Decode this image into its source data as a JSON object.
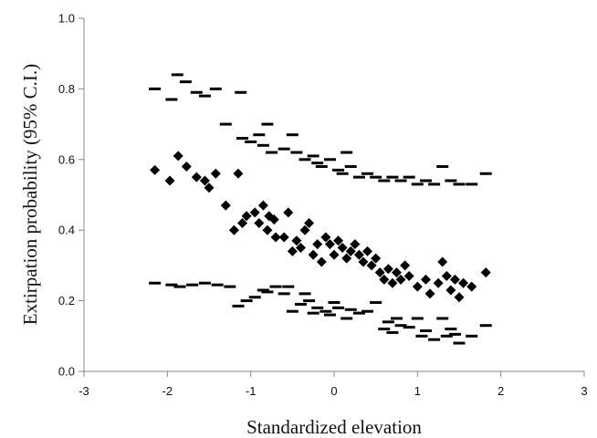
{
  "chart_data": {
    "type": "scatter",
    "title": "",
    "xlabel": "Standardized elevation",
    "ylabel": "Extirpation probability (95% C.I.)",
    "xlim": [
      -3,
      3
    ],
    "ylim": [
      0,
      1.0
    ],
    "xticks": [
      "-3",
      "-2",
      "-1",
      "0",
      "1",
      "2",
      "3"
    ],
    "yticks": [
      "0.0",
      "0.2",
      "0.4",
      "0.6",
      "0.8",
      "1.0"
    ],
    "grid": false,
    "legend": "none",
    "series": [
      {
        "role": "upper 95% C.I.",
        "marker": "dash",
        "color": "#000000",
        "points": [
          [
            -2.15,
            0.8
          ],
          [
            -1.95,
            0.77
          ],
          [
            -1.88,
            0.84
          ],
          [
            -1.78,
            0.82
          ],
          [
            -1.65,
            0.79
          ],
          [
            -1.55,
            0.78
          ],
          [
            -1.42,
            0.8
          ],
          [
            -1.12,
            0.79
          ],
          [
            -1.3,
            0.7
          ],
          [
            -1.1,
            0.66
          ],
          [
            -1.0,
            0.65
          ],
          [
            -0.9,
            0.67
          ],
          [
            -0.8,
            0.7
          ],
          [
            -0.85,
            0.64
          ],
          [
            -0.75,
            0.62
          ],
          [
            -0.6,
            0.63
          ],
          [
            -0.5,
            0.67
          ],
          [
            -0.45,
            0.62
          ],
          [
            -0.35,
            0.6
          ],
          [
            -0.25,
            0.61
          ],
          [
            -0.2,
            0.59
          ],
          [
            -0.15,
            0.58
          ],
          [
            -0.05,
            0.6
          ],
          [
            0.05,
            0.57
          ],
          [
            0.1,
            0.56
          ],
          [
            0.15,
            0.62
          ],
          [
            0.2,
            0.58
          ],
          [
            0.3,
            0.55
          ],
          [
            0.4,
            0.56
          ],
          [
            0.5,
            0.55
          ],
          [
            0.6,
            0.54
          ],
          [
            0.7,
            0.55
          ],
          [
            0.8,
            0.54
          ],
          [
            0.9,
            0.55
          ],
          [
            1.0,
            0.53
          ],
          [
            1.1,
            0.54
          ],
          [
            1.2,
            0.53
          ],
          [
            1.3,
            0.58
          ],
          [
            1.4,
            0.54
          ],
          [
            1.5,
            0.53
          ],
          [
            1.65,
            0.53
          ],
          [
            1.82,
            0.56
          ]
        ]
      },
      {
        "role": "estimate",
        "marker": "diamond",
        "color": "#000000",
        "points": [
          [
            -2.15,
            0.57
          ],
          [
            -1.97,
            0.54
          ],
          [
            -1.87,
            0.61
          ],
          [
            -1.77,
            0.58
          ],
          [
            -1.65,
            0.55
          ],
          [
            -1.55,
            0.54
          ],
          [
            -1.5,
            0.52
          ],
          [
            -1.42,
            0.56
          ],
          [
            -1.3,
            0.47
          ],
          [
            -1.15,
            0.56
          ],
          [
            -1.2,
            0.4
          ],
          [
            -1.1,
            0.42
          ],
          [
            -1.05,
            0.44
          ],
          [
            -0.95,
            0.45
          ],
          [
            -0.9,
            0.42
          ],
          [
            -0.85,
            0.47
          ],
          [
            -0.8,
            0.4
          ],
          [
            -0.78,
            0.44
          ],
          [
            -0.72,
            0.43
          ],
          [
            -0.7,
            0.38
          ],
          [
            -0.6,
            0.38
          ],
          [
            -0.55,
            0.45
          ],
          [
            -0.5,
            0.34
          ],
          [
            -0.45,
            0.37
          ],
          [
            -0.4,
            0.35
          ],
          [
            -0.35,
            0.4
          ],
          [
            -0.3,
            0.42
          ],
          [
            -0.25,
            0.33
          ],
          [
            -0.2,
            0.36
          ],
          [
            -0.15,
            0.31
          ],
          [
            -0.1,
            0.38
          ],
          [
            -0.05,
            0.36
          ],
          [
            0.0,
            0.33
          ],
          [
            0.05,
            0.37
          ],
          [
            0.1,
            0.35
          ],
          [
            0.15,
            0.32
          ],
          [
            0.2,
            0.34
          ],
          [
            0.25,
            0.36
          ],
          [
            0.3,
            0.33
          ],
          [
            0.35,
            0.31
          ],
          [
            0.4,
            0.34
          ],
          [
            0.45,
            0.3
          ],
          [
            0.5,
            0.32
          ],
          [
            0.55,
            0.28
          ],
          [
            0.6,
            0.26
          ],
          [
            0.65,
            0.29
          ],
          [
            0.7,
            0.25
          ],
          [
            0.75,
            0.28
          ],
          [
            0.8,
            0.26
          ],
          [
            0.85,
            0.3
          ],
          [
            0.9,
            0.27
          ],
          [
            1.0,
            0.24
          ],
          [
            1.1,
            0.26
          ],
          [
            1.15,
            0.22
          ],
          [
            1.25,
            0.25
          ],
          [
            1.3,
            0.31
          ],
          [
            1.35,
            0.27
          ],
          [
            1.4,
            0.23
          ],
          [
            1.45,
            0.26
          ],
          [
            1.5,
            0.21
          ],
          [
            1.55,
            0.25
          ],
          [
            1.65,
            0.24
          ],
          [
            1.82,
            0.28
          ]
        ]
      },
      {
        "role": "lower 95% C.I.",
        "marker": "dash",
        "color": "#000000",
        "points": [
          [
            -2.15,
            0.25
          ],
          [
            -1.95,
            0.245
          ],
          [
            -1.85,
            0.24
          ],
          [
            -1.7,
            0.245
          ],
          [
            -1.55,
            0.25
          ],
          [
            -1.4,
            0.245
          ],
          [
            -1.25,
            0.24
          ],
          [
            -1.15,
            0.185
          ],
          [
            -1.05,
            0.2
          ],
          [
            -0.95,
            0.21
          ],
          [
            -0.85,
            0.23
          ],
          [
            -0.8,
            0.225
          ],
          [
            -0.7,
            0.24
          ],
          [
            -0.6,
            0.22
          ],
          [
            -0.55,
            0.24
          ],
          [
            -0.5,
            0.17
          ],
          [
            -0.4,
            0.19
          ],
          [
            -0.35,
            0.22
          ],
          [
            -0.3,
            0.2
          ],
          [
            -0.25,
            0.165
          ],
          [
            -0.2,
            0.18
          ],
          [
            -0.1,
            0.17
          ],
          [
            -0.05,
            0.16
          ],
          [
            0.0,
            0.195
          ],
          [
            0.05,
            0.18
          ],
          [
            0.15,
            0.15
          ],
          [
            0.2,
            0.175
          ],
          [
            0.3,
            0.165
          ],
          [
            0.4,
            0.17
          ],
          [
            0.5,
            0.195
          ],
          [
            0.6,
            0.12
          ],
          [
            0.65,
            0.14
          ],
          [
            0.7,
            0.11
          ],
          [
            0.75,
            0.15
          ],
          [
            0.8,
            0.13
          ],
          [
            0.9,
            0.125
          ],
          [
            1.0,
            0.15
          ],
          [
            1.05,
            0.1
          ],
          [
            1.1,
            0.115
          ],
          [
            1.2,
            0.09
          ],
          [
            1.3,
            0.15
          ],
          [
            1.35,
            0.1
          ],
          [
            1.4,
            0.12
          ],
          [
            1.45,
            0.105
          ],
          [
            1.5,
            0.08
          ],
          [
            1.65,
            0.1
          ],
          [
            1.82,
            0.13
          ]
        ]
      }
    ]
  }
}
